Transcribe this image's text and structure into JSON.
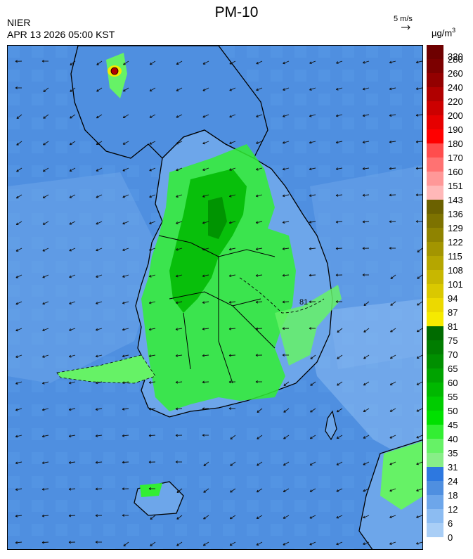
{
  "header": {
    "title": "PM-10",
    "agency": "NIER",
    "timestamp": "APR 13 2026 05:00 KST",
    "wind_scale_label": "5 m/s",
    "unit_base": "µg/m",
    "unit_exp": "3"
  },
  "map": {
    "contour_label": "81"
  },
  "legend": {
    "ticks": [
      "320",
      "280",
      "260",
      "240",
      "220",
      "200",
      "190",
      "180",
      "170",
      "160",
      "151",
      "143",
      "136",
      "129",
      "122",
      "115",
      "108",
      "101",
      "94",
      "87",
      "81",
      "75",
      "70",
      "65",
      "60",
      "55",
      "50",
      "45",
      "40",
      "35",
      "31",
      "24",
      "18",
      "12",
      "6",
      "0"
    ],
    "colors": [
      "#6e0000",
      "#7c0000",
      "#930000",
      "#b00000",
      "#cc0000",
      "#e60000",
      "#ff0000",
      "#ff4d4d",
      "#ff7272",
      "#ff9898",
      "#ffb8b8",
      "#6b6100",
      "#7d7200",
      "#8f8300",
      "#a39500",
      "#b5a600",
      "#c8b700",
      "#dac800",
      "#ecd900",
      "#f6ea00",
      "#006b00",
      "#007d00",
      "#008f00",
      "#00a300",
      "#00b800",
      "#00cc00",
      "#00e000",
      "#33ee33",
      "#66f266",
      "#88ee88",
      "#2d78e0",
      "#4f8fe0",
      "#6da6ea",
      "#8cbcf2",
      "#a9cef6"
    ]
  }
}
